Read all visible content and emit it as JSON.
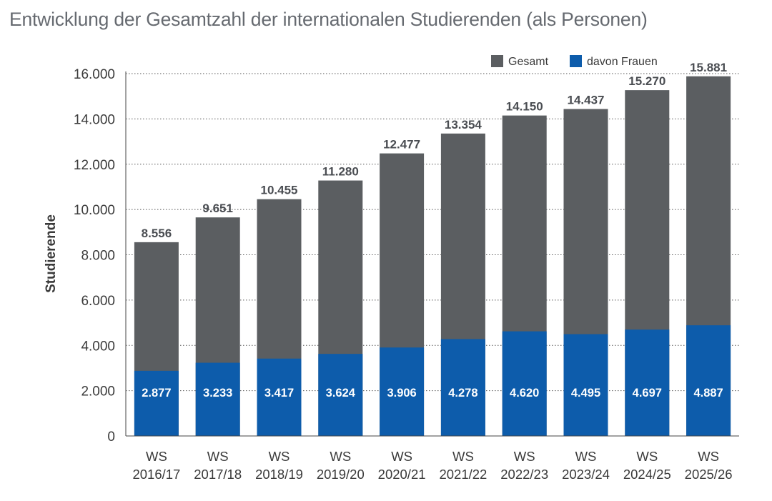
{
  "chart_data": {
    "type": "bar",
    "title": "Entwicklung der Gesamtzahl der internationalen Studierenden (als Personen)",
    "ylabel": "Studierende",
    "xlabel": "",
    "ylim": [
      0,
      16000
    ],
    "yticks": [
      0,
      2000,
      4000,
      6000,
      8000,
      10000,
      12000,
      14000,
      16000
    ],
    "ytick_labels": [
      "0",
      "2.000",
      "4.000",
      "6.000",
      "8.000",
      "10.000",
      "12.000",
      "14.000",
      "16.000"
    ],
    "grid": true,
    "legend_position": "top-right",
    "categories": [
      [
        "WS",
        "2016/17"
      ],
      [
        "WS",
        "2017/18"
      ],
      [
        "WS",
        "2018/19"
      ],
      [
        "WS",
        "2019/20"
      ],
      [
        "WS",
        "2020/21"
      ],
      [
        "WS",
        "2021/22"
      ],
      [
        "WS",
        "2022/23"
      ],
      [
        "WS",
        "2023/24"
      ],
      [
        "WS",
        "2024/25"
      ],
      [
        "WS",
        "2025/26"
      ]
    ],
    "series": [
      {
        "name": "Gesamt",
        "color": "#5b5e61",
        "values": [
          8556,
          9651,
          10455,
          11280,
          12477,
          13354,
          14150,
          14437,
          15270,
          15881
        ],
        "labels": [
          "8.556",
          "9.651",
          "10.455",
          "11.280",
          "12.477",
          "13.354",
          "14.150",
          "14.437",
          "15.270",
          "15.881"
        ]
      },
      {
        "name": "davon Frauen",
        "color": "#0d5cab",
        "values": [
          2877,
          3233,
          3417,
          3624,
          3906,
          4278,
          4620,
          4495,
          4697,
          4887
        ],
        "labels": [
          "2.877",
          "3.233",
          "3.417",
          "3.624",
          "3.906",
          "4.278",
          "4.620",
          "4.495",
          "4.697",
          "4.887"
        ]
      }
    ]
  }
}
